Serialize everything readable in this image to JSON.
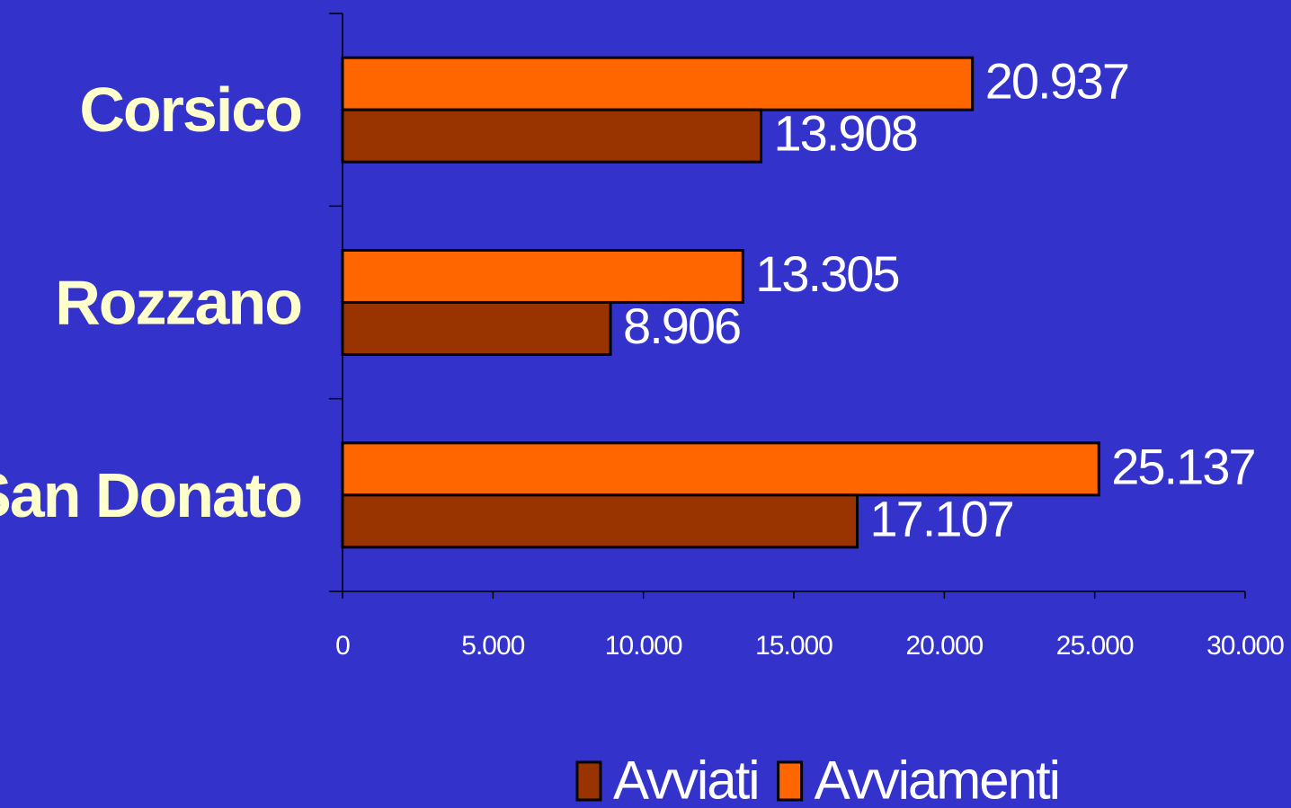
{
  "chart_data": {
    "type": "bar",
    "orientation": "horizontal",
    "categories": [
      "Corsico",
      "Rozzano",
      "San Donato"
    ],
    "series": [
      {
        "name": "Avviati",
        "color": "#993300",
        "values": [
          13908,
          8906,
          17107
        ],
        "labels": [
          "13.908",
          "8.906",
          "17.107"
        ]
      },
      {
        "name": "Avviamenti",
        "color": "#ff6600",
        "values": [
          20937,
          13305,
          25137
        ],
        "labels": [
          "20.937",
          "13.305",
          "25.137"
        ]
      }
    ],
    "xlim": [
      0,
      30000
    ],
    "xticks": [
      0,
      5000,
      10000,
      15000,
      20000,
      25000,
      30000
    ],
    "xtick_labels": [
      "0",
      "5.000",
      "10.000",
      "15.000",
      "20.000",
      "25.000",
      "30.000"
    ],
    "title": "",
    "xlabel": "",
    "ylabel": "",
    "grid": false,
    "legend_position": "bottom"
  },
  "colors": {
    "background": "#3333cc",
    "category_text": "#ffffcc",
    "value_text": "#ffffff",
    "axis": "#000000"
  }
}
